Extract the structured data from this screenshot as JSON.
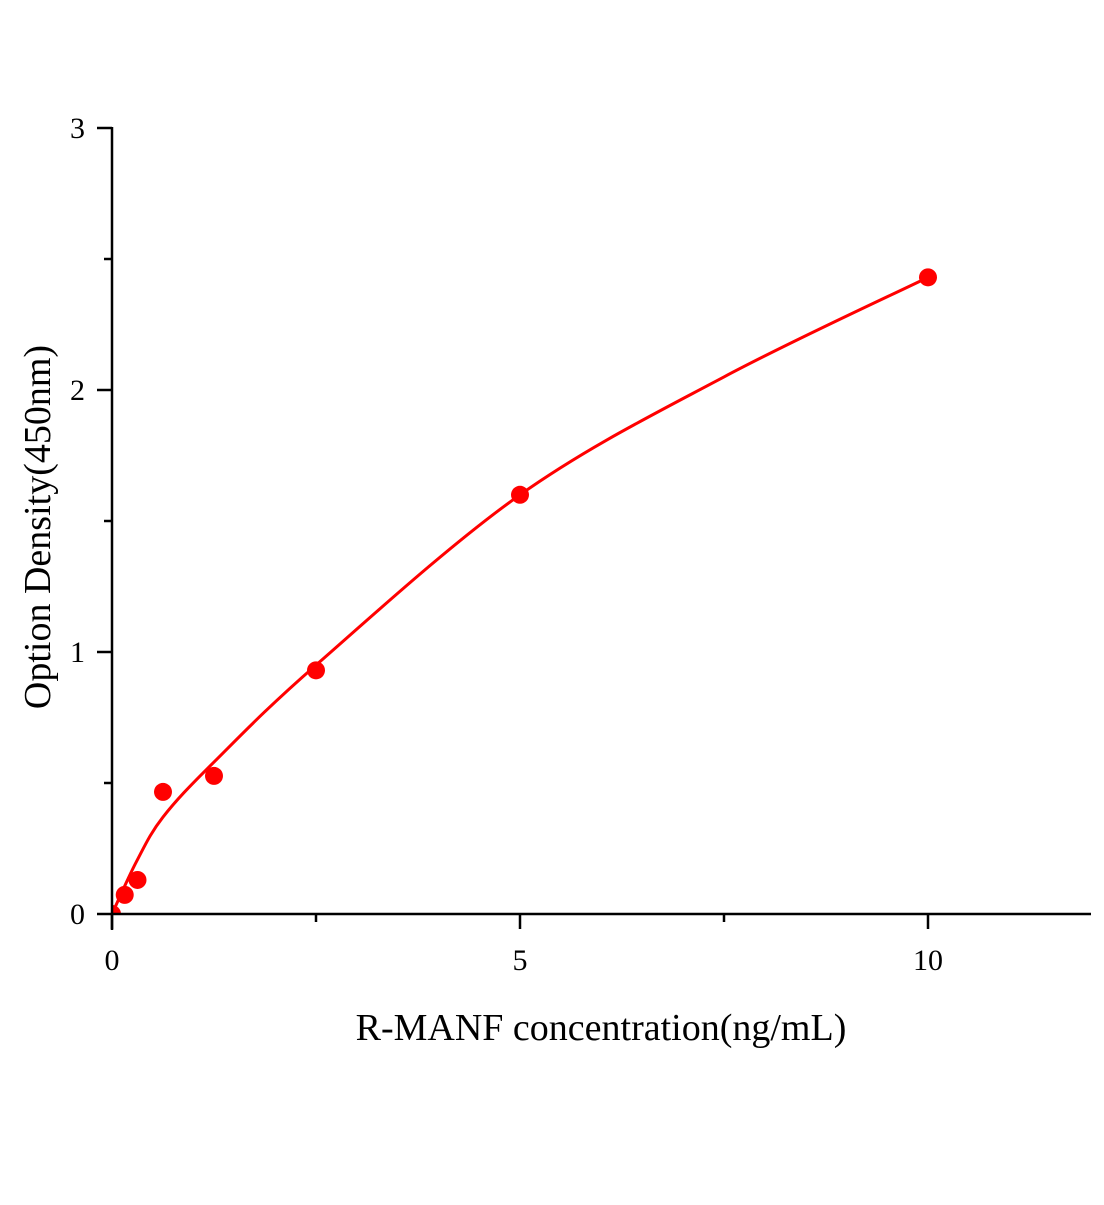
{
  "chart_data": {
    "type": "scatter",
    "title": "",
    "xlabel": "R-MANF concentration(ng/mL)",
    "ylabel": "Option Density(450nm)",
    "xlim": [
      0,
      12
    ],
    "ylim": [
      0,
      3
    ],
    "x_ticks": [
      0,
      5,
      10
    ],
    "x_tick_labels": [
      "0",
      "5",
      "10"
    ],
    "x_minor_ticks": [
      2.5,
      7.5
    ],
    "y_ticks": [
      0,
      1,
      2,
      3
    ],
    "y_tick_labels": [
      "0",
      "1",
      "2",
      "3"
    ],
    "y_minor_ticks": [
      0.5,
      1.5,
      2.5
    ],
    "grid": false,
    "color": "#ff0000",
    "points": {
      "x": [
        0,
        0.156,
        0.3125,
        0.625,
        1.25,
        2.5,
        5,
        10
      ],
      "y": [
        0,
        0.073,
        0.13,
        0.466,
        0.527,
        0.93,
        1.6,
        2.43
      ]
    },
    "fit_curve": {
      "x": [
        0,
        0.3,
        0.625,
        1.25,
        2.5,
        5,
        7.5,
        10
      ],
      "y": [
        0,
        0.2,
        0.37,
        0.58,
        0.95,
        1.6,
        2.05,
        2.43
      ]
    }
  }
}
